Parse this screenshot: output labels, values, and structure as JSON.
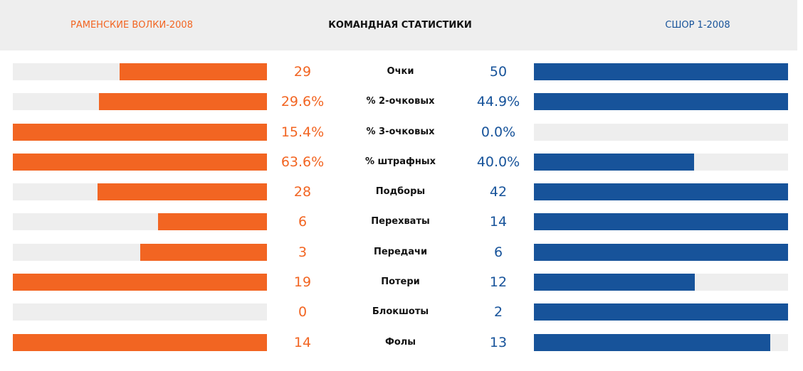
{
  "header": {
    "team_left": "РАМЕНСКИЕ ВОЛКИ-2008",
    "title": "КОМАНДНАЯ СТАТИСТИКИ",
    "team_right": "СШОР 1-2008"
  },
  "colors": {
    "left_team": "#f26522",
    "right_team": "#17539a",
    "bar_track": "#eeeeee",
    "header_bg": "#eeeeee"
  },
  "stats": [
    {
      "label": "Очки",
      "left": "29",
      "right": "50",
      "left_fill": 0.58,
      "right_fill": 1.0
    },
    {
      "label": "% 2-очковых",
      "left": "29.6%",
      "right": "44.9%",
      "left_fill": 0.66,
      "right_fill": 1.0
    },
    {
      "label": "% 3-очковых",
      "left": "15.4%",
      "right": "0.0%",
      "left_fill": 1.0,
      "right_fill": 0.0
    },
    {
      "label": "% штрафных",
      "left": "63.6%",
      "right": "40.0%",
      "left_fill": 1.0,
      "right_fill": 0.63
    },
    {
      "label": "Подборы",
      "left": "28",
      "right": "42",
      "left_fill": 0.667,
      "right_fill": 1.0
    },
    {
      "label": "Перехваты",
      "left": "6",
      "right": "14",
      "left_fill": 0.429,
      "right_fill": 1.0
    },
    {
      "label": "Передачи",
      "left": "3",
      "right": "6",
      "left_fill": 0.5,
      "right_fill": 1.0
    },
    {
      "label": "Потери",
      "left": "19",
      "right": "12",
      "left_fill": 1.0,
      "right_fill": 0.632
    },
    {
      "label": "Блокшоты",
      "left": "0",
      "right": "2",
      "left_fill": 0.0,
      "right_fill": 1.0
    },
    {
      "label": "Фолы",
      "left": "14",
      "right": "13",
      "left_fill": 1.0,
      "right_fill": 0.929
    }
  ]
}
